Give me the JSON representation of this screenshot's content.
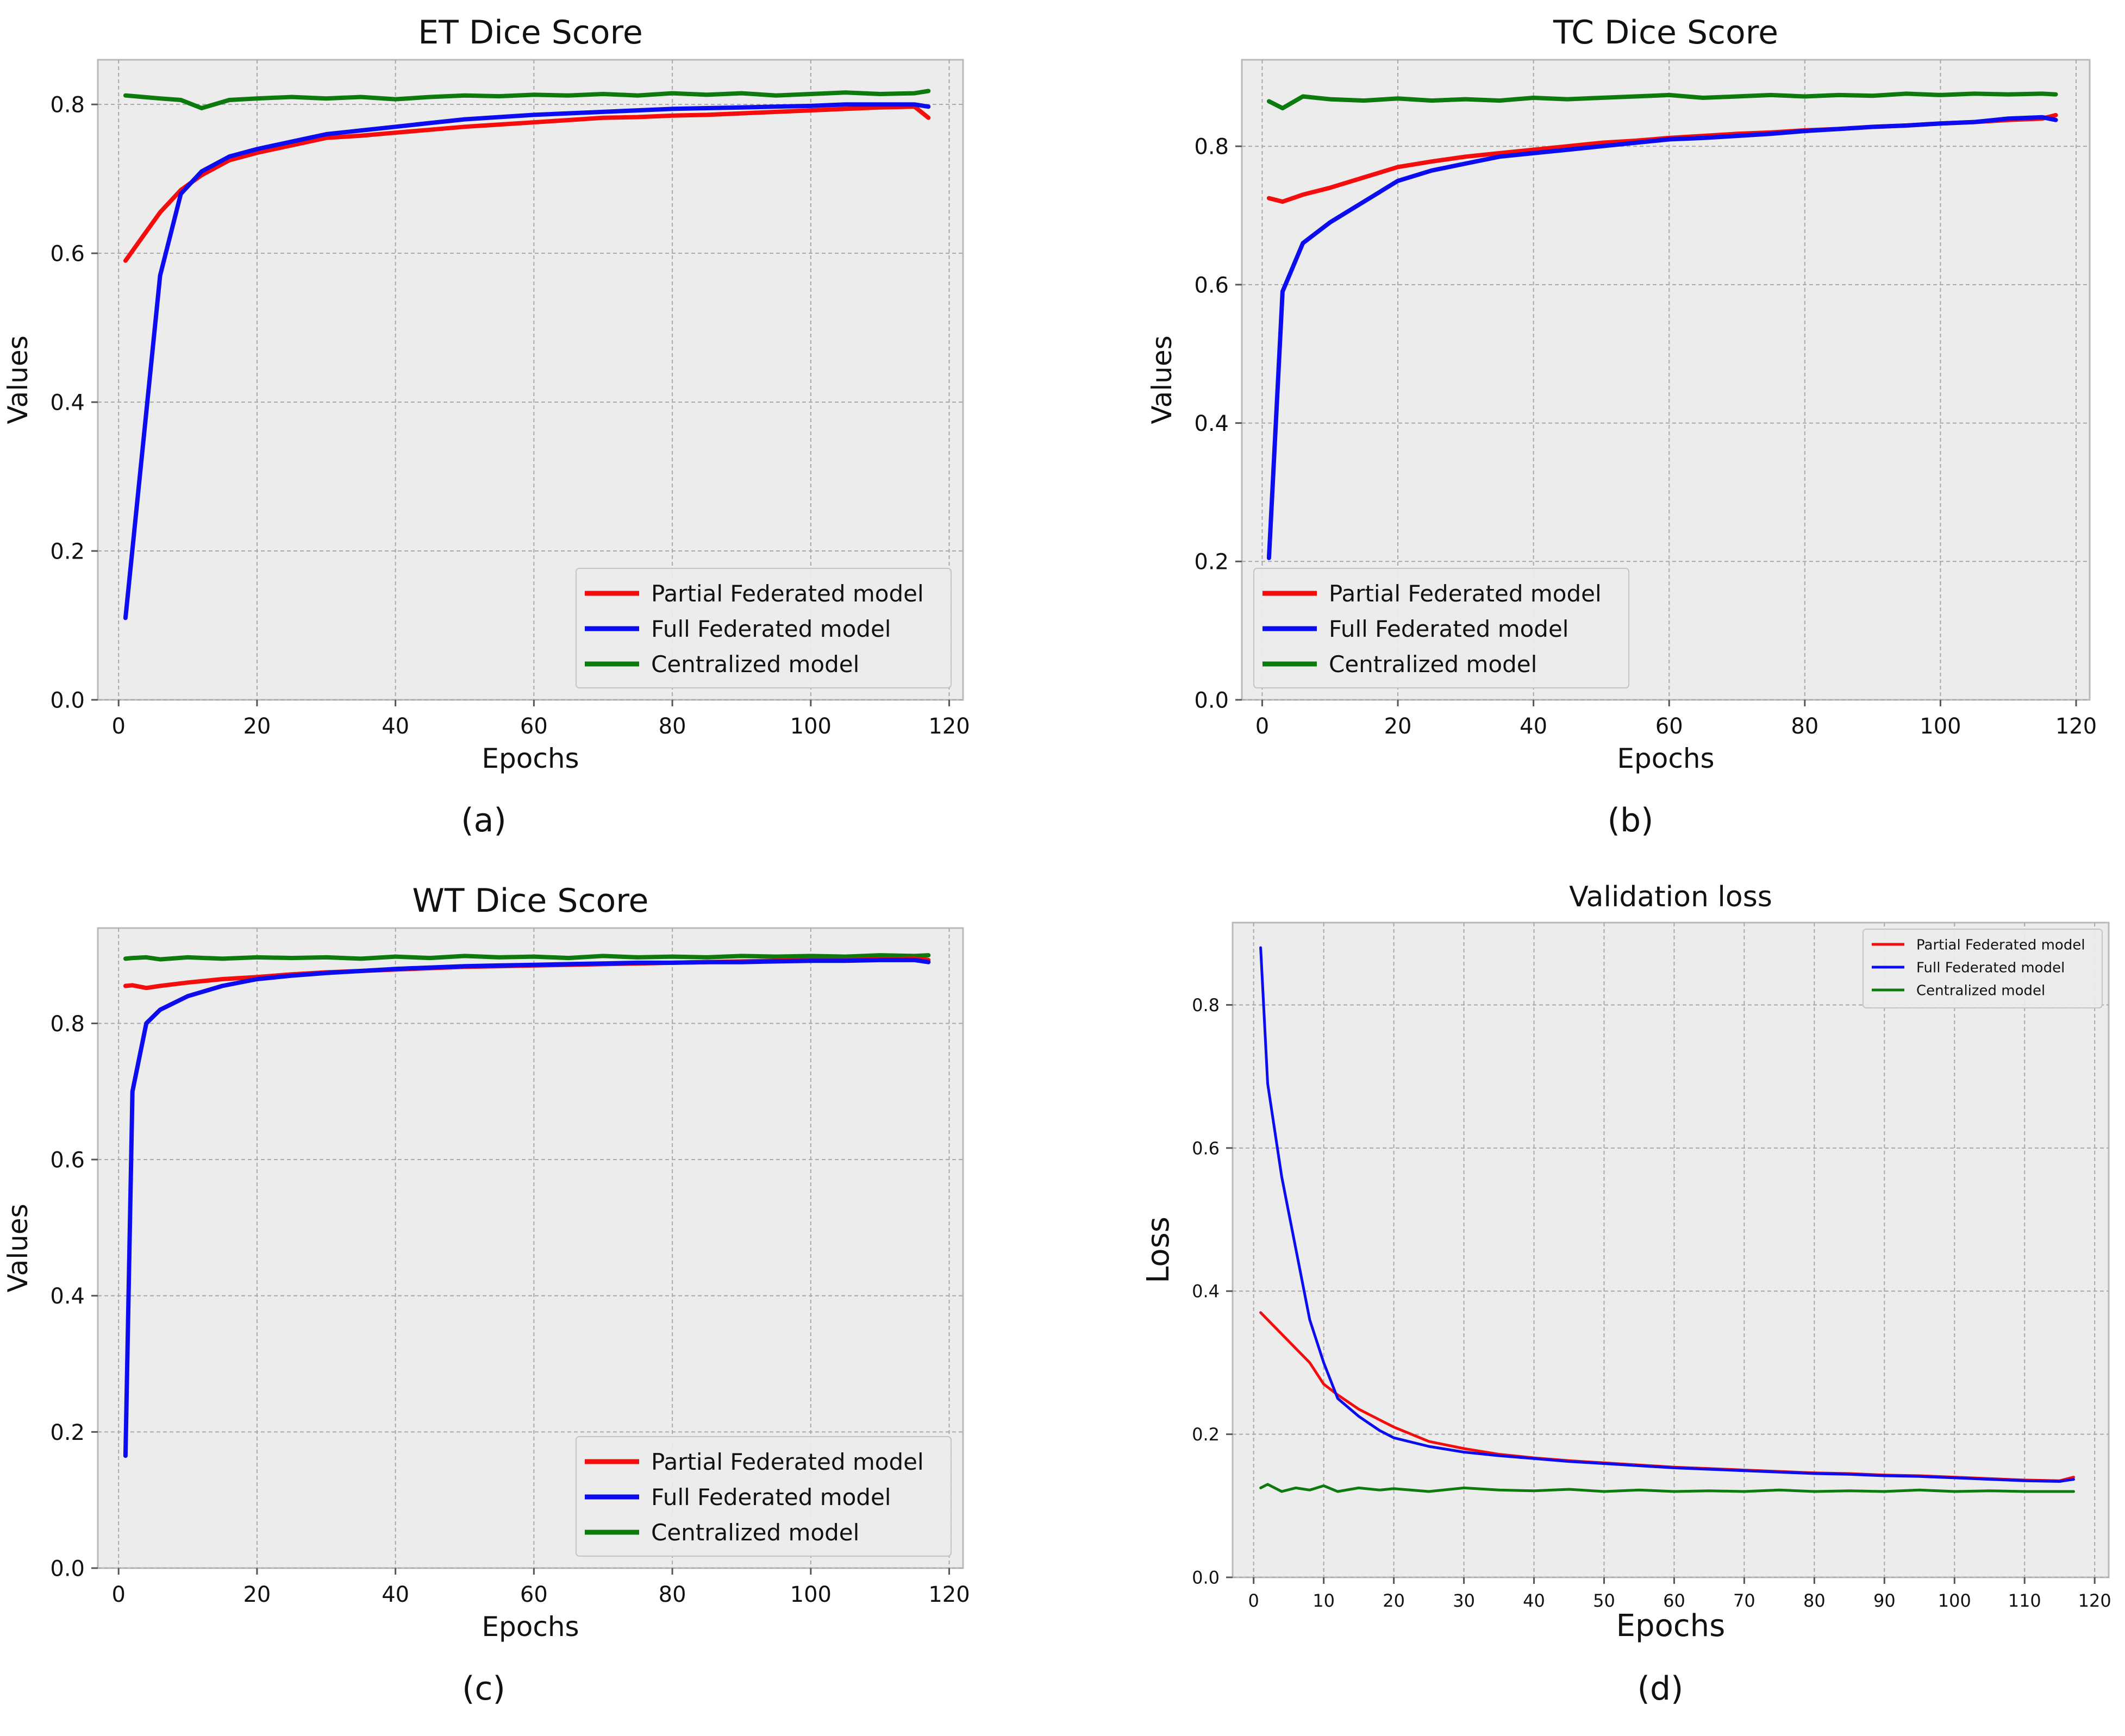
{
  "chart_data": [
    {
      "type": "line",
      "title": "ET Dice Score",
      "xlabel": "Epochs",
      "ylabel": "Values",
      "caption": "(a)",
      "xlim": [
        -3,
        122
      ],
      "ylim": [
        0,
        0.86
      ],
      "xticks": [
        0,
        20,
        40,
        60,
        80,
        100,
        120
      ],
      "yticks": [
        0.0,
        0.2,
        0.4,
        0.6,
        0.8
      ],
      "ytick_decimals": 1,
      "grid": true,
      "legend": "bottom-right",
      "legend_size": "large",
      "x": [
        1,
        6,
        9,
        12,
        16,
        20,
        25,
        30,
        35,
        40,
        45,
        50,
        55,
        60,
        65,
        70,
        75,
        80,
        85,
        90,
        95,
        100,
        105,
        110,
        115,
        117
      ],
      "series": [
        {
          "name": "Partial Federated model",
          "color": "#f50c0c",
          "values": [
            0.59,
            0.655,
            0.685,
            0.705,
            0.725,
            0.735,
            0.745,
            0.755,
            0.758,
            0.762,
            0.766,
            0.77,
            0.773,
            0.776,
            0.779,
            0.782,
            0.783,
            0.785,
            0.786,
            0.788,
            0.79,
            0.792,
            0.794,
            0.796,
            0.797,
            0.782
          ]
        },
        {
          "name": "Full Federated model",
          "color": "#0c0cf0",
          "values": [
            0.11,
            0.57,
            0.68,
            0.71,
            0.73,
            0.74,
            0.75,
            0.76,
            0.765,
            0.77,
            0.775,
            0.78,
            0.783,
            0.786,
            0.788,
            0.79,
            0.792,
            0.794,
            0.795,
            0.796,
            0.797,
            0.798,
            0.8,
            0.8,
            0.8,
            0.797
          ]
        },
        {
          "name": "Centralized model",
          "color": "#0d7a0d",
          "values": [
            0.812,
            0.808,
            0.806,
            0.795,
            0.806,
            0.808,
            0.81,
            0.808,
            0.81,
            0.807,
            0.81,
            0.812,
            0.811,
            0.813,
            0.812,
            0.814,
            0.812,
            0.815,
            0.813,
            0.815,
            0.812,
            0.814,
            0.816,
            0.814,
            0.815,
            0.818
          ]
        }
      ]
    },
    {
      "type": "line",
      "title": "TC Dice Score",
      "xlabel": "Epochs",
      "ylabel": "Values",
      "caption": "(b)",
      "xlim": [
        -3,
        122
      ],
      "ylim": [
        0,
        0.925
      ],
      "xticks": [
        0,
        20,
        40,
        60,
        80,
        100,
        120
      ],
      "yticks": [
        0.0,
        0.2,
        0.4,
        0.6,
        0.8
      ],
      "ytick_decimals": 1,
      "grid": true,
      "legend": "bottom-left",
      "legend_size": "large",
      "x": [
        1,
        3,
        6,
        10,
        15,
        20,
        25,
        30,
        35,
        40,
        45,
        50,
        55,
        60,
        65,
        70,
        75,
        80,
        85,
        90,
        95,
        100,
        105,
        110,
        115,
        117
      ],
      "series": [
        {
          "name": "Partial Federated model",
          "color": "#f50c0c",
          "values": [
            0.725,
            0.72,
            0.73,
            0.74,
            0.755,
            0.77,
            0.778,
            0.785,
            0.79,
            0.795,
            0.8,
            0.805,
            0.808,
            0.812,
            0.815,
            0.818,
            0.82,
            0.823,
            0.825,
            0.828,
            0.83,
            0.833,
            0.835,
            0.838,
            0.84,
            0.845
          ]
        },
        {
          "name": "Full Federated model",
          "color": "#0c0cf0",
          "values": [
            0.205,
            0.59,
            0.66,
            0.69,
            0.72,
            0.75,
            0.765,
            0.775,
            0.785,
            0.79,
            0.795,
            0.8,
            0.805,
            0.81,
            0.812,
            0.815,
            0.818,
            0.822,
            0.825,
            0.828,
            0.83,
            0.833,
            0.835,
            0.84,
            0.842,
            0.838
          ]
        },
        {
          "name": "Centralized model",
          "color": "#0d7a0d",
          "values": [
            0.865,
            0.855,
            0.872,
            0.868,
            0.866,
            0.869,
            0.866,
            0.868,
            0.866,
            0.87,
            0.868,
            0.87,
            0.872,
            0.874,
            0.87,
            0.872,
            0.874,
            0.872,
            0.874,
            0.873,
            0.876,
            0.874,
            0.876,
            0.875,
            0.876,
            0.875
          ]
        }
      ]
    },
    {
      "type": "line",
      "title": "WT Dice Score",
      "xlabel": "Epochs",
      "ylabel": "Values",
      "caption": "(c)",
      "xlim": [
        -3,
        122
      ],
      "ylim": [
        0,
        0.94
      ],
      "xticks": [
        0,
        20,
        40,
        60,
        80,
        100,
        120
      ],
      "yticks": [
        0.0,
        0.2,
        0.4,
        0.6,
        0.8
      ],
      "ytick_decimals": 1,
      "grid": true,
      "legend": "bottom-right",
      "legend_size": "large",
      "x": [
        1,
        2,
        4,
        6,
        10,
        15,
        20,
        25,
        30,
        35,
        40,
        45,
        50,
        55,
        60,
        65,
        70,
        75,
        80,
        85,
        90,
        95,
        100,
        105,
        110,
        115,
        117
      ],
      "series": [
        {
          "name": "Partial Federated model",
          "color": "#f50c0c",
          "values": [
            0.855,
            0.856,
            0.852,
            0.855,
            0.86,
            0.865,
            0.868,
            0.872,
            0.875,
            0.877,
            0.879,
            0.881,
            0.883,
            0.884,
            0.885,
            0.886,
            0.887,
            0.888,
            0.889,
            0.89,
            0.891,
            0.892,
            0.893,
            0.893,
            0.894,
            0.895,
            0.893
          ]
        },
        {
          "name": "Full Federated model",
          "color": "#0c0cf0",
          "values": [
            0.165,
            0.7,
            0.8,
            0.82,
            0.84,
            0.855,
            0.865,
            0.87,
            0.874,
            0.877,
            0.88,
            0.882,
            0.884,
            0.885,
            0.886,
            0.887,
            0.888,
            0.889,
            0.889,
            0.89,
            0.89,
            0.891,
            0.892,
            0.892,
            0.893,
            0.893,
            0.89
          ]
        },
        {
          "name": "Centralized model",
          "color": "#0d7a0d",
          "values": [
            0.895,
            0.896,
            0.897,
            0.894,
            0.897,
            0.895,
            0.897,
            0.896,
            0.897,
            0.895,
            0.898,
            0.896,
            0.899,
            0.897,
            0.898,
            0.896,
            0.899,
            0.897,
            0.898,
            0.897,
            0.899,
            0.898,
            0.899,
            0.898,
            0.9,
            0.899,
            0.9
          ]
        }
      ]
    },
    {
      "type": "line",
      "title": "Validation loss",
      "xlabel": "Epochs",
      "ylabel": "Loss",
      "caption": "(d)",
      "xlim": [
        -3,
        122
      ],
      "ylim": [
        0,
        0.915
      ],
      "xticks": [
        0,
        10,
        20,
        30,
        40,
        50,
        60,
        70,
        80,
        90,
        100,
        110,
        120
      ],
      "yticks": [
        0.0,
        0.2,
        0.4,
        0.6,
        0.8
      ],
      "ytick_decimals": 1,
      "grid": true,
      "legend": "top-right",
      "legend_size": "small",
      "x": [
        1,
        2,
        4,
        6,
        8,
        10,
        12,
        15,
        18,
        20,
        25,
        30,
        35,
        40,
        45,
        50,
        55,
        60,
        65,
        70,
        75,
        80,
        85,
        90,
        95,
        100,
        105,
        110,
        115,
        117
      ],
      "series": [
        {
          "name": "Partial Federated model",
          "color": "#f50c0c",
          "values": [
            0.37,
            0.36,
            0.34,
            0.32,
            0.3,
            0.27,
            0.255,
            0.235,
            0.22,
            0.21,
            0.19,
            0.18,
            0.172,
            0.167,
            0.163,
            0.16,
            0.157,
            0.154,
            0.152,
            0.15,
            0.148,
            0.146,
            0.145,
            0.143,
            0.142,
            0.14,
            0.138,
            0.136,
            0.135,
            0.14
          ]
        },
        {
          "name": "Full Federated model",
          "color": "#0c0cf0",
          "values": [
            0.88,
            0.69,
            0.56,
            0.46,
            0.36,
            0.3,
            0.25,
            0.225,
            0.205,
            0.195,
            0.183,
            0.175,
            0.17,
            0.166,
            0.162,
            0.159,
            0.156,
            0.153,
            0.151,
            0.149,
            0.147,
            0.145,
            0.144,
            0.142,
            0.141,
            0.139,
            0.137,
            0.135,
            0.134,
            0.137
          ]
        },
        {
          "name": "Centralized model",
          "color": "#0d7a0d",
          "values": [
            0.125,
            0.13,
            0.12,
            0.125,
            0.122,
            0.128,
            0.12,
            0.125,
            0.122,
            0.124,
            0.12,
            0.125,
            0.122,
            0.121,
            0.123,
            0.12,
            0.122,
            0.12,
            0.121,
            0.12,
            0.122,
            0.12,
            0.121,
            0.12,
            0.122,
            0.12,
            0.121,
            0.12,
            0.12,
            0.12
          ]
        }
      ]
    }
  ]
}
